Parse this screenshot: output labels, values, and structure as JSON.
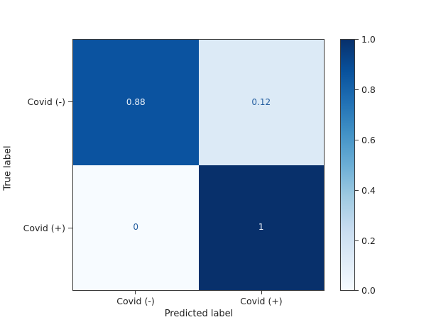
{
  "chart_data": {
    "type": "heatmap",
    "title": "",
    "xlabel": "Predicted label",
    "ylabel": "True label",
    "x_categories": [
      "Covid (-)",
      "Covid (+)"
    ],
    "y_categories": [
      "Covid (-)",
      "Covid (+)"
    ],
    "values": [
      [
        0.88,
        0.12
      ],
      [
        0,
        1
      ]
    ],
    "value_range": [
      0.0,
      1.0
    ],
    "colormap": "Blues",
    "grid": false,
    "legend": "colorbar-right",
    "cells": [
      {
        "row": "Covid (-)",
        "col": "Covid (-)",
        "value": 0.88,
        "label": "0.88",
        "bg": "#0b53a0",
        "fg": "#e8eff8"
      },
      {
        "row": "Covid (-)",
        "col": "Covid (+)",
        "value": 0.12,
        "label": "0.12",
        "bg": "#dceaf6",
        "fg": "#235d9f"
      },
      {
        "row": "Covid (+)",
        "col": "Covid (-)",
        "value": 0,
        "label": "0",
        "bg": "#f7fbff",
        "fg": "#235d9f"
      },
      {
        "row": "Covid (+)",
        "col": "Covid (+)",
        "value": 1,
        "label": "1",
        "bg": "#08306b",
        "fg": "#e8eff8"
      }
    ],
    "colorbar": {
      "tick_labels": [
        "1.0",
        "0.8",
        "0.6",
        "0.4",
        "0.2",
        "0.0"
      ],
      "tick_values": [
        1.0,
        0.8,
        0.6,
        0.4,
        0.2,
        0.0
      ],
      "gradient_stops_bottom_to_top": [
        "#f7fbff 0%",
        "#deebf7 12.5%",
        "#c6dbef 25%",
        "#9ecae1 37.5%",
        "#6baed6 50%",
        "#4292c6 62.5%",
        "#2171b5 75%",
        "#08519c 87.5%",
        "#08306b 100%"
      ]
    }
  }
}
